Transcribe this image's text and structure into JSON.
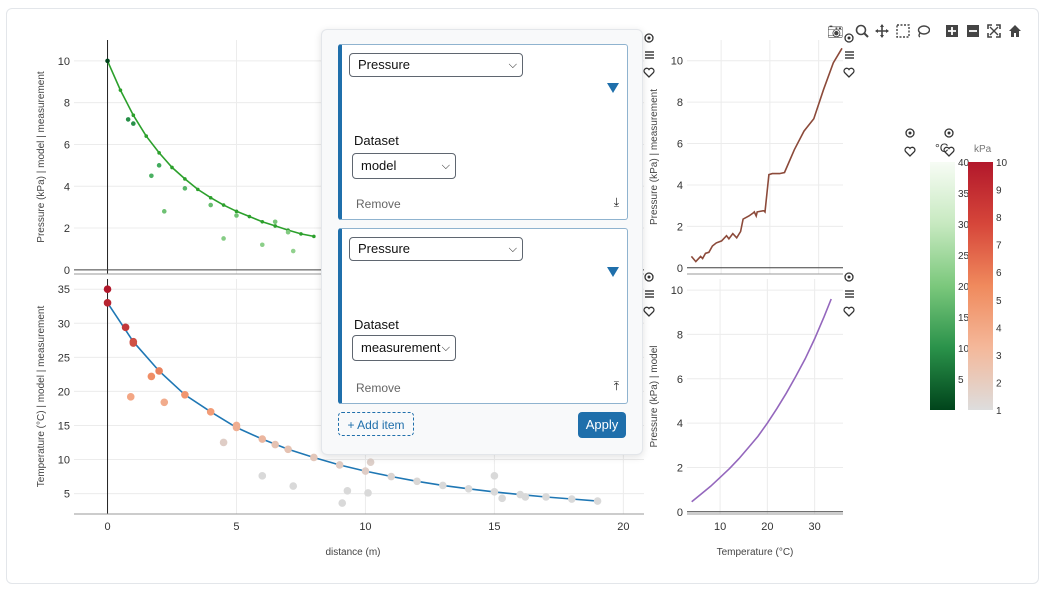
{
  "modebar": {
    "icons": [
      "camera-icon",
      "zoom-icon",
      "pan-icon",
      "box-select-icon",
      "lasso-icon",
      "zoom-in-icon",
      "zoom-out-icon",
      "autoscale-icon",
      "home-icon"
    ]
  },
  "panel": {
    "cards": [
      {
        "variable": "Pressure",
        "dataset_label": "Dataset",
        "dataset": "model",
        "remove_label": "Remove",
        "move_icon": "move-down-icon"
      },
      {
        "variable": "Pressure",
        "dataset_label": "Dataset",
        "dataset": "measurement",
        "remove_label": "Remove",
        "move_icon": "move-up-icon"
      }
    ],
    "add_label": "+ Add item",
    "apply_label": "Apply"
  },
  "colorbars": [
    {
      "title": "°C",
      "min": 0,
      "max": 40,
      "ticks": [
        5,
        10,
        15,
        20,
        25,
        30,
        35,
        40
      ],
      "colors": [
        "#00441b",
        "#2a924a",
        "#7bc87c",
        "#c7e9c0",
        "#f7fcf5"
      ]
    },
    {
      "title": "kPa",
      "min": 1,
      "max": 10,
      "ticks": [
        1,
        2,
        3,
        4,
        5,
        6,
        7,
        8,
        9,
        10
      ],
      "colors": [
        "#dddddd",
        "#f4b89a",
        "#f08a5d",
        "#d6463a",
        "#b2182b"
      ]
    }
  ],
  "chart_data": [
    {
      "id": "top-left",
      "type": "scatter",
      "xlim": [
        -1.3,
        20.8
      ],
      "ylim": [
        -0.2,
        11
      ],
      "yticks": [
        0,
        2,
        4,
        6,
        8,
        10
      ],
      "ylabel": "Pressure (kPa) | model | measurement",
      "color_scale": "greens",
      "series": [
        {
          "mode": "line",
          "color": "#2ca02c",
          "x": [
            0,
            0.5,
            1,
            1.5,
            2,
            2.5,
            3,
            3.5,
            4,
            4.5,
            5,
            5.5,
            6,
            6.5,
            7,
            7.5,
            8
          ],
          "y": [
            10,
            8.6,
            7.4,
            6.4,
            5.6,
            4.9,
            4.35,
            3.85,
            3.45,
            3.1,
            2.8,
            2.55,
            2.3,
            2.1,
            1.9,
            1.72,
            1.6
          ]
        },
        {
          "mode": "markers",
          "x": [
            0,
            0.8,
            1,
            1.7,
            2,
            2.2,
            3,
            4,
            4.5,
            5,
            6,
            6.5,
            7,
            7.2
          ],
          "y": [
            10,
            7.2,
            7,
            4.5,
            5,
            2.8,
            3.9,
            3.1,
            1.5,
            2.6,
            1.2,
            2.3,
            1.8,
            0.9
          ],
          "values": [
            10,
            7.2,
            7,
            4.5,
            5,
            2.8,
            3.9,
            3.1,
            1.5,
            2.6,
            1.2,
            2.3,
            1.8,
            0.9
          ]
        }
      ]
    },
    {
      "id": "bottom-left",
      "type": "scatter",
      "xlim": [
        -1.3,
        20.8
      ],
      "ylim": [
        2,
        36.5
      ],
      "xticks": [
        0,
        5,
        10,
        15,
        20
      ],
      "yticks": [
        5,
        10,
        15,
        20,
        25,
        30,
        35
      ],
      "xlabel": "distance (m)",
      "ylabel": "Temperature (°C) | model | measurement",
      "color_scale": "reds",
      "series": [
        {
          "mode": "line",
          "color": "#1f77b4",
          "x": [
            0,
            1,
            2,
            3,
            4,
            5,
            6,
            7,
            8,
            9,
            10,
            11,
            12,
            13,
            14,
            15,
            16,
            17,
            18,
            19
          ],
          "y": [
            33,
            27.3,
            23,
            19.5,
            17,
            14.7,
            13,
            11.5,
            10.3,
            9.2,
            8.3,
            7.5,
            6.8,
            6.2,
            5.7,
            5.25,
            4.85,
            4.5,
            4.2,
            3.9
          ]
        },
        {
          "mode": "markers",
          "x": [
            0,
            0,
            0.7,
            1,
            1,
            0.9,
            1.7,
            2,
            2.2,
            3,
            4,
            4.5,
            5,
            5,
            6,
            6,
            6.5,
            7,
            7.2,
            8,
            9,
            9.1,
            9.3,
            10,
            10.1,
            10.2,
            11,
            12,
            13,
            14,
            15,
            15,
            15.3,
            16,
            16.2,
            17,
            18,
            19
          ],
          "y": [
            35,
            33,
            29.4,
            27.3,
            27.1,
            19.2,
            22.2,
            23,
            18.4,
            19.5,
            17,
            12.5,
            15,
            14.7,
            13,
            7.6,
            12.2,
            11.5,
            6.1,
            10.3,
            9.2,
            3.6,
            5.4,
            8.3,
            5.1,
            9.6,
            7.5,
            6.8,
            6.2,
            5.7,
            7.6,
            5.25,
            4.3,
            4.85,
            4.5,
            4.5,
            4.2,
            3.9
          ],
          "values": [
            10,
            9.6,
            9,
            8.4,
            8.2,
            3.2,
            5.2,
            6,
            3,
            4.5,
            4,
            1.5,
            2.9,
            2.8,
            2.5,
            1,
            2,
            2,
            1,
            1.8,
            1.6,
            1,
            1,
            1.5,
            1,
            1.4,
            1.2,
            1.1,
            1,
            1,
            1,
            1,
            1,
            1,
            1,
            1,
            1,
            1
          ]
        }
      ]
    },
    {
      "id": "top-right",
      "type": "line",
      "xlim": [
        3,
        35
      ],
      "ylim": [
        -0.3,
        11
      ],
      "yticks": [
        0,
        2,
        4,
        6,
        8,
        10
      ],
      "ylabel": "Pressure (kPa) | measurement",
      "series": [
        {
          "color": "#8c4a3a",
          "x": [
            3.9,
            4.8,
            5.8,
            6.2,
            6.8,
            7.5,
            8.2,
            9,
            10.1,
            11.1,
            11.6,
            12.4,
            13.2,
            14,
            14.5,
            15.7,
            16.6,
            16.8,
            17.2,
            17.4,
            18.6,
            18.8,
            19,
            19.8,
            20.5,
            22,
            23,
            25,
            27,
            29,
            31,
            33,
            34.8
          ],
          "y": [
            0.55,
            0.3,
            0.55,
            0.45,
            0.7,
            0.75,
            1.05,
            1.2,
            1.3,
            1.55,
            1.4,
            1.65,
            1.45,
            1.75,
            2.35,
            2.5,
            2.65,
            2.7,
            2.5,
            2.7,
            2.75,
            2.75,
            2.7,
            4.5,
            4.55,
            4.55,
            4.6,
            5.7,
            6.6,
            7.2,
            8.6,
            9.9,
            10.6
          ]
        }
      ]
    },
    {
      "id": "bottom-right",
      "type": "line",
      "xlim": [
        3,
        36
      ],
      "ylim": [
        -0.1,
        10.5
      ],
      "xticks": [
        10,
        20,
        30
      ],
      "yticks": [
        0,
        2,
        4,
        6,
        8,
        10
      ],
      "xlabel": "Temperature (°C)",
      "ylabel": "Pressure (kPa) | model",
      "series": [
        {
          "color": "#9467bd",
          "x": [
            4,
            6,
            8,
            10,
            12,
            14,
            16,
            18,
            20,
            22,
            24,
            26,
            28,
            30,
            32,
            33.5
          ],
          "y": [
            0.45,
            0.8,
            1.15,
            1.55,
            1.95,
            2.4,
            2.9,
            3.4,
            4,
            4.65,
            5.35,
            6.1,
            6.9,
            7.8,
            8.8,
            9.6
          ]
        }
      ]
    }
  ]
}
